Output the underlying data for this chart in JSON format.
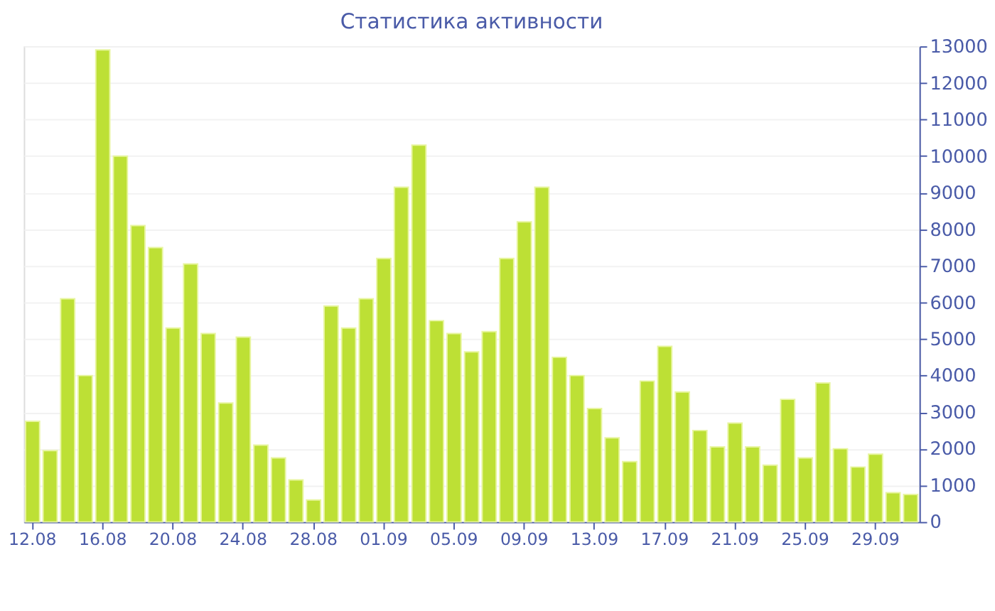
{
  "chart_data": {
    "type": "bar",
    "title": "Статистика активности",
    "categories": [
      "12.08",
      null,
      null,
      null,
      "16.08",
      null,
      null,
      null,
      "20.08",
      null,
      null,
      null,
      "24.08",
      null,
      null,
      null,
      "28.08",
      null,
      null,
      null,
      "01.09",
      null,
      null,
      null,
      "05.09",
      null,
      null,
      null,
      "09.09",
      null,
      null,
      null,
      "13.09",
      null,
      null,
      null,
      "17.09",
      null,
      null,
      null,
      "21.09",
      null,
      null,
      null,
      "25.09",
      null,
      null,
      null,
      "29.09",
      null,
      null
    ],
    "values": [
      2750,
      1950,
      6100,
      4000,
      12900,
      10000,
      8100,
      7500,
      5300,
      7050,
      5150,
      3250,
      5050,
      2100,
      1750,
      1150,
      600,
      5900,
      5300,
      6100,
      7200,
      9150,
      10300,
      5500,
      5150,
      4650,
      5200,
      7200,
      8200,
      9150,
      4500,
      4000,
      3100,
      2300,
      1650,
      3850,
      4800,
      3550,
      2500,
      2050,
      2700,
      2050,
      1550,
      3350,
      1750,
      3800,
      2000,
      1500,
      1850,
      800,
      750
    ],
    "color": "#bde035",
    "ylim": [
      0,
      13000
    ],
    "yticks": [
      0,
      1000,
      2000,
      3000,
      4000,
      5000,
      6000,
      7000,
      8000,
      9000,
      10000,
      11000,
      12000,
      13000
    ],
    "grid": "y"
  }
}
